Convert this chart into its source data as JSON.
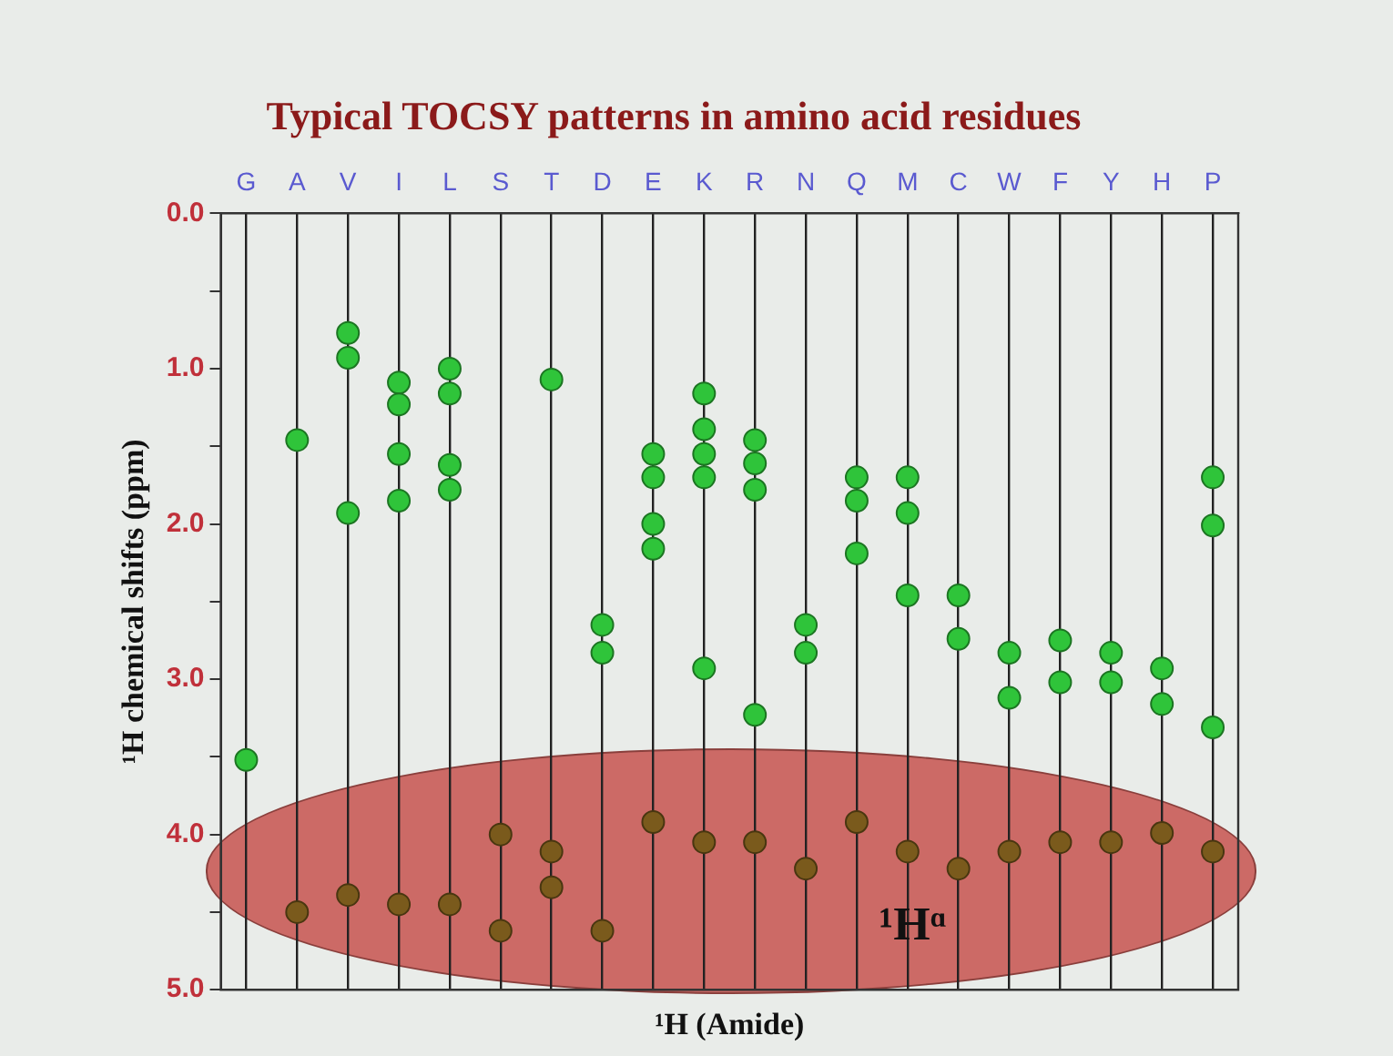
{
  "chart_data": {
    "type": "scatter",
    "title": "Typical TOCSY patterns in amino acid residues",
    "xlabel": "¹H (Amide)",
    "ylabel": "¹H chemical shifts (ppm)",
    "categories": [
      "G",
      "A",
      "V",
      "I",
      "L",
      "S",
      "T",
      "D",
      "E",
      "K",
      "R",
      "N",
      "Q",
      "M",
      "C",
      "W",
      "F",
      "Y",
      "H",
      "P"
    ],
    "ylim": [
      5.0,
      0.0
    ],
    "yticks": [
      {
        "value": 0,
        "label": "0.0"
      },
      {
        "value": 0.5,
        "label": null
      },
      {
        "value": 1,
        "label": "1.0"
      },
      {
        "value": 1.5,
        "label": null
      },
      {
        "value": 2,
        "label": "2.0"
      },
      {
        "value": 2.5,
        "label": null
      },
      {
        "value": 3,
        "label": "3.0"
      },
      {
        "value": 3.5,
        "label": null
      },
      {
        "value": 4,
        "label": "4.0"
      },
      {
        "value": 4.5,
        "label": null
      },
      {
        "value": 5,
        "label": "5.0"
      }
    ],
    "grid": "x",
    "legend": false,
    "marker": "circle",
    "annotations": [
      "¹Hᵅ"
    ],
    "series": [
      {
        "color": "#2fc43a",
        "x": [
          "G",
          "A",
          "V",
          "V",
          "V",
          "I",
          "I",
          "I",
          "I",
          "L",
          "L",
          "L",
          "L",
          "T",
          "D",
          "D",
          "E",
          "E",
          "E",
          "E",
          "K",
          "K",
          "K",
          "K",
          "K",
          "R",
          "R",
          "R",
          "R",
          "N",
          "N",
          "Q",
          "Q",
          "Q",
          "M",
          "M",
          "M",
          "C",
          "C",
          "W",
          "W",
          "F",
          "F",
          "Y",
          "Y",
          "H",
          "H",
          "P",
          "P",
          "P"
        ],
        "values": [
          3.52,
          1.46,
          0.77,
          0.93,
          1.93,
          1.09,
          1.23,
          1.55,
          1.85,
          1.0,
          1.16,
          1.62,
          1.78,
          1.07,
          2.65,
          2.83,
          1.55,
          1.7,
          2.0,
          2.16,
          1.16,
          1.39,
          1.55,
          1.7,
          2.93,
          1.46,
          1.61,
          1.78,
          3.23,
          2.65,
          2.83,
          1.7,
          1.85,
          2.19,
          1.7,
          1.93,
          2.46,
          2.46,
          2.74,
          2.83,
          3.12,
          2.75,
          3.02,
          2.83,
          3.02,
          2.93,
          3.16,
          1.7,
          2.01,
          3.31
        ]
      },
      {
        "color": "#7a5a1c",
        "x": [
          "A",
          "V",
          "I",
          "L",
          "S",
          "S",
          "T",
          "T",
          "D",
          "E",
          "K",
          "R",
          "N",
          "Q",
          "M",
          "C",
          "W",
          "F",
          "Y",
          "H",
          "P"
        ],
        "values": [
          4.5,
          4.39,
          4.45,
          4.45,
          4.0,
          4.62,
          4.11,
          4.34,
          4.62,
          3.92,
          4.05,
          4.05,
          4.22,
          3.92,
          4.11,
          4.22,
          4.11,
          4.05,
          4.05,
          3.99,
          4.11
        ]
      }
    ]
  }
}
